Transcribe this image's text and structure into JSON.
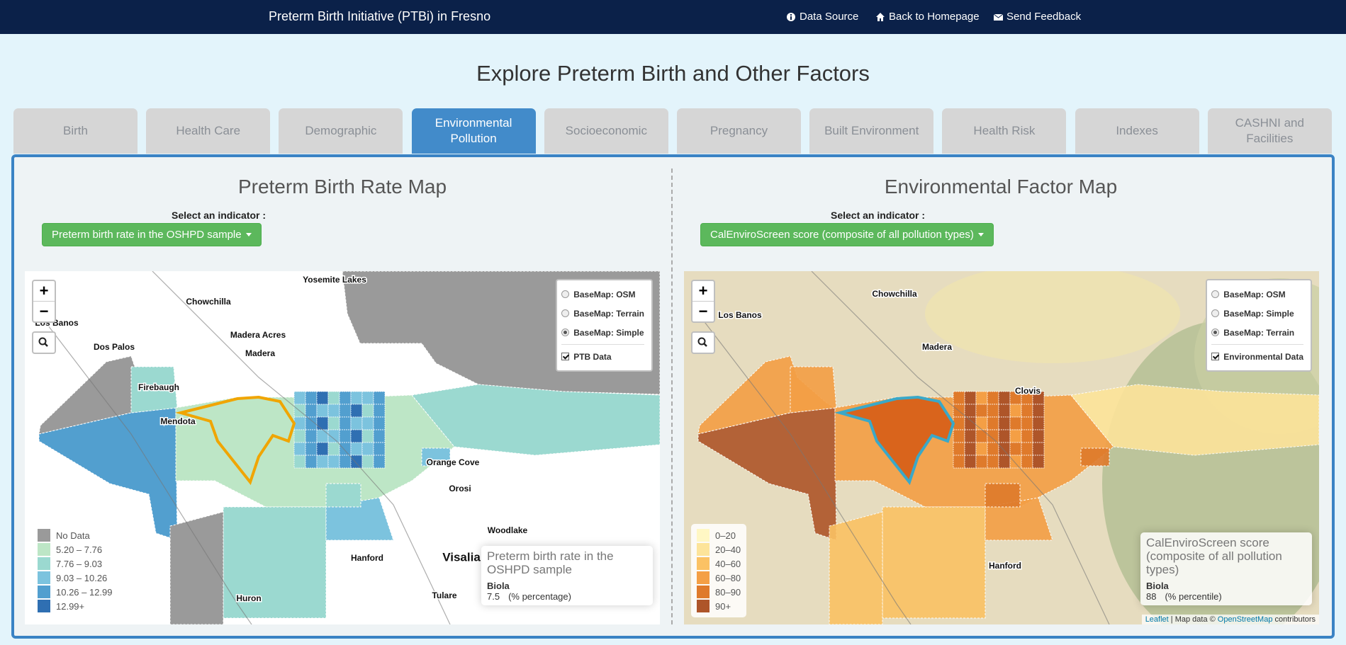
{
  "navbar": {
    "title": "Preterm Birth Initiative (PTBi) in Fresno",
    "links": [
      "Data Source",
      "Back to Homepage",
      "Send Feedback"
    ]
  },
  "page_title": "Explore Preterm Birth and Other Factors",
  "tabs": {
    "items": [
      "Birth",
      "Health Care",
      "Demographic",
      "Environmental Pollution",
      "Socioeconomic",
      "Pregnancy",
      "Built Environment",
      "Health Risk",
      "Indexes",
      "CASHNI and Facilities"
    ],
    "active": 3
  },
  "panels": [
    {
      "heading": "Preterm Birth Rate Map",
      "indicator_label": "Select an indicator :",
      "indicator_button": "Preterm birth rate in the OSHPD sample",
      "map": {
        "zoom_in": "+",
        "zoom_out": "−",
        "layers": [
          "BaseMap: OSM",
          "BaseMap: Terrain",
          "BaseMap: Simple"
        ],
        "checked_layer": 2,
        "overlay": "PTB Data",
        "places": [
          "Yosemite Lakes",
          "Chowchilla",
          "Los Banos",
          "Madera Acres",
          "Dos Palos",
          "Madera",
          "Firebaugh",
          "Mendota",
          "Orange Cove",
          "Orosi",
          "Woodlake",
          "Hanford",
          "Visalia",
          "Tulare",
          "Huron"
        ],
        "legend": [
          {
            "label": "No Data",
            "color": "#9a9a9a"
          },
          {
            "label": "5.20 – 7.76",
            "color": "#bde6c6"
          },
          {
            "label": "7.76 – 9.03",
            "color": "#9bd9d0"
          },
          {
            "label": "9.03 – 10.26",
            "color": "#7cc3de"
          },
          {
            "label": "10.26 – 12.99",
            "color": "#529fcf"
          },
          {
            "label": "12.99+",
            "color": "#2f6fb2"
          }
        ],
        "info": {
          "title": "Preterm birth rate in the OSHPD sample",
          "place": "Biola",
          "value": 7.5,
          "unit": "(% percentage)"
        }
      }
    },
    {
      "heading": "Environmental Factor Map",
      "indicator_label": "Select an indicator :",
      "indicator_button": "CalEnviroScreen score (composite of all pollution types)",
      "map": {
        "zoom_in": "+",
        "zoom_out": "−",
        "layers": [
          "BaseMap: OSM",
          "BaseMap: Simple",
          "BaseMap: Terrain"
        ],
        "checked_layer": 2,
        "overlay": "Environmental Data",
        "places": [
          "Chowchilla",
          "Los Banos",
          "Madera",
          "Clovis",
          "Hanford"
        ],
        "legend": [
          {
            "label": "0–20",
            "color": "#fff7c4"
          },
          {
            "label": "20–40",
            "color": "#fde49a"
          },
          {
            "label": "40–60",
            "color": "#fbc264"
          },
          {
            "label": "60–80",
            "color": "#f49f45"
          },
          {
            "label": "80–90",
            "color": "#df7a2b"
          },
          {
            "label": "90+",
            "color": "#ae5529"
          }
        ],
        "info": {
          "title": "CalEnviroScreen score (composite of all pollution types)",
          "place": "Biola",
          "value": 88,
          "unit": "(% percentile)"
        },
        "attribution": {
          "leaflet": "Leaflet",
          "text": "| Map data ©",
          "osm": "OpenStreetMap",
          "suffix": "contributors"
        }
      }
    }
  ]
}
